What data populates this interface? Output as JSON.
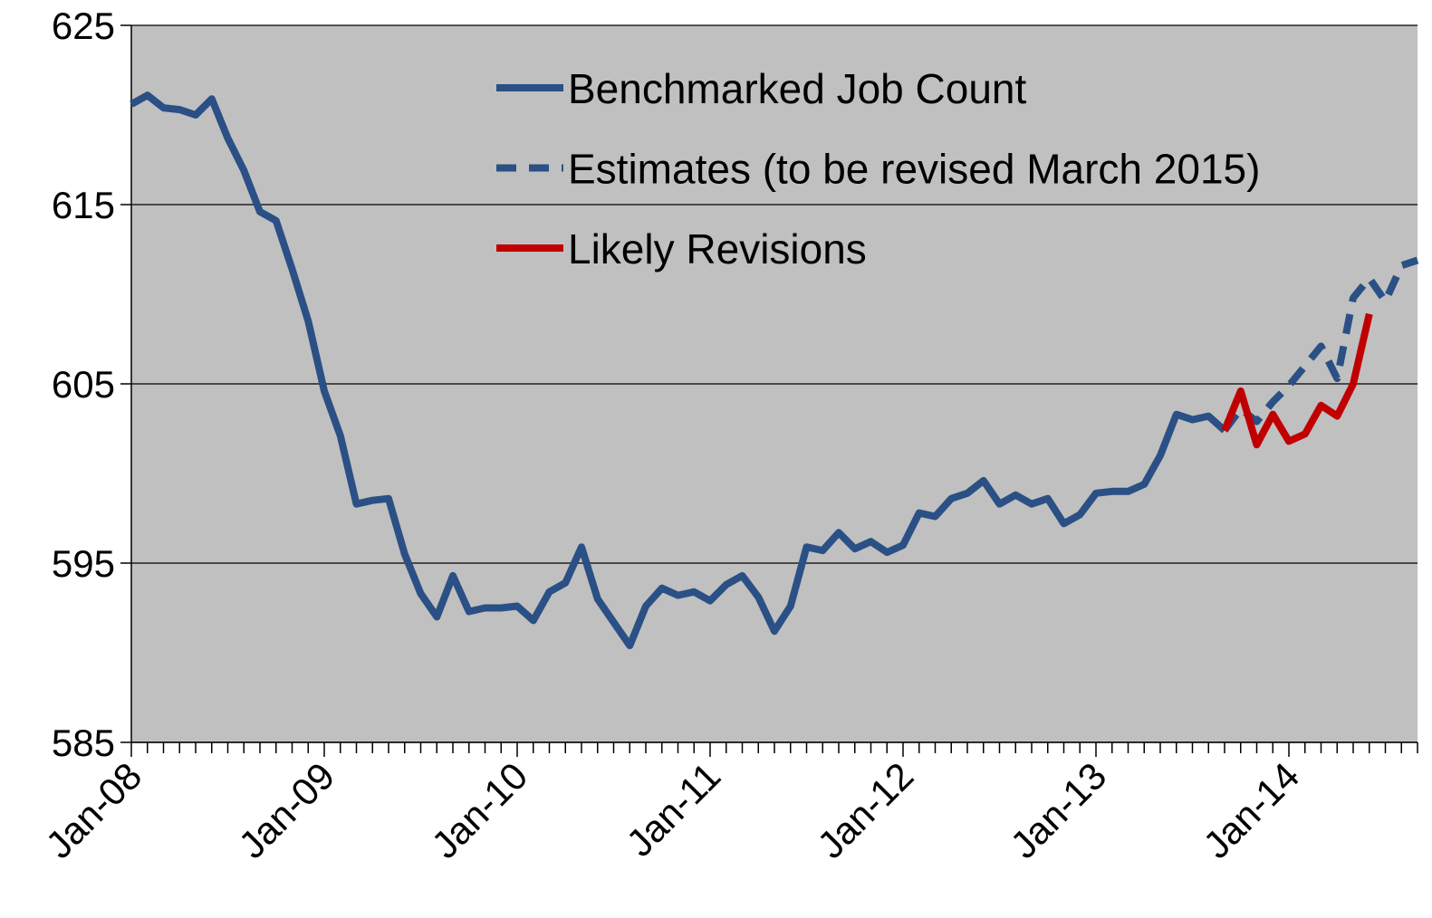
{
  "chart_data": {
    "type": "line",
    "categories": [
      "Jan-08",
      null,
      null,
      null,
      null,
      null,
      null,
      null,
      null,
      null,
      null,
      null,
      "Jan-09",
      null,
      null,
      null,
      null,
      null,
      null,
      null,
      null,
      null,
      null,
      null,
      "Jan-10",
      null,
      null,
      null,
      null,
      null,
      null,
      null,
      null,
      null,
      null,
      null,
      "Jan-11",
      null,
      null,
      null,
      null,
      null,
      null,
      null,
      null,
      null,
      null,
      null,
      "Jan-12",
      null,
      null,
      null,
      null,
      null,
      null,
      null,
      null,
      null,
      null,
      null,
      "Jan-13",
      null,
      null,
      null,
      null,
      null,
      null,
      null,
      null,
      null,
      null,
      null,
      "Jan-14",
      null,
      null,
      null,
      null,
      null,
      null,
      null,
      null
    ],
    "series": [
      {
        "name": "Benchmarked Job Count",
        "color": "#2a5085",
        "dash": false,
        "values": [
          620.6,
          621.1,
          620.4,
          620.3,
          620.0,
          620.9,
          618.7,
          616.9,
          614.6,
          614.1,
          611.4,
          608.5,
          604.6,
          602.1,
          598.3,
          598.5,
          598.6,
          595.5,
          593.3,
          592.0,
          594.3,
          592.3,
          592.5,
          592.5,
          592.6,
          591.8,
          593.4,
          593.9,
          595.9,
          593.0,
          591.7,
          590.4,
          592.6,
          593.6,
          593.2,
          593.4,
          592.9,
          593.8,
          594.3,
          593.1,
          591.2,
          592.6,
          595.9,
          595.7,
          596.7,
          595.8,
          596.2,
          595.6,
          596.0,
          597.8,
          597.6,
          598.6,
          598.9,
          599.6,
          598.3,
          598.8,
          598.3,
          598.6,
          597.2,
          597.7,
          598.9,
          599.0,
          599.0,
          599.4,
          601.0,
          603.3,
          603.0,
          603.2,
          602.4,
          null,
          null,
          null,
          null,
          null,
          null,
          null,
          null,
          null,
          null,
          null,
          null
        ]
      },
      {
        "name": "Estimates (to be revised March 2015)",
        "color": "#2a5085",
        "dash": true,
        "values": [
          null,
          null,
          null,
          null,
          null,
          null,
          null,
          null,
          null,
          null,
          null,
          null,
          null,
          null,
          null,
          null,
          null,
          null,
          null,
          null,
          null,
          null,
          null,
          null,
          null,
          null,
          null,
          null,
          null,
          null,
          null,
          null,
          null,
          null,
          null,
          null,
          null,
          null,
          null,
          null,
          null,
          null,
          null,
          null,
          null,
          null,
          null,
          null,
          null,
          null,
          null,
          null,
          null,
          null,
          null,
          null,
          null,
          null,
          null,
          null,
          null,
          null,
          null,
          null,
          null,
          null,
          null,
          null,
          602.4,
          603.6,
          602.9,
          604.0,
          604.9,
          606.0,
          607.1,
          605.3,
          609.8,
          610.9,
          609.6,
          611.6,
          611.9
        ]
      },
      {
        "name": "Likely Revisions",
        "color": "#c00000",
        "dash": false,
        "values": [
          null,
          null,
          null,
          null,
          null,
          null,
          null,
          null,
          null,
          null,
          null,
          null,
          null,
          null,
          null,
          null,
          null,
          null,
          null,
          null,
          null,
          null,
          null,
          null,
          null,
          null,
          null,
          null,
          null,
          null,
          null,
          null,
          null,
          null,
          null,
          null,
          null,
          null,
          null,
          null,
          null,
          null,
          null,
          null,
          null,
          null,
          null,
          null,
          null,
          null,
          null,
          null,
          null,
          null,
          null,
          null,
          null,
          null,
          null,
          null,
          null,
          null,
          null,
          null,
          null,
          null,
          null,
          null,
          602.4,
          604.6,
          601.6,
          603.3,
          601.8,
          602.2,
          603.8,
          603.2,
          605.0,
          608.9,
          null,
          null,
          null
        ]
      }
    ],
    "ylim": [
      585,
      625
    ],
    "yticks": [
      585,
      595,
      605,
      615,
      625
    ],
    "grid": true,
    "legend": "upper center",
    "background": "#c0c0c0"
  }
}
